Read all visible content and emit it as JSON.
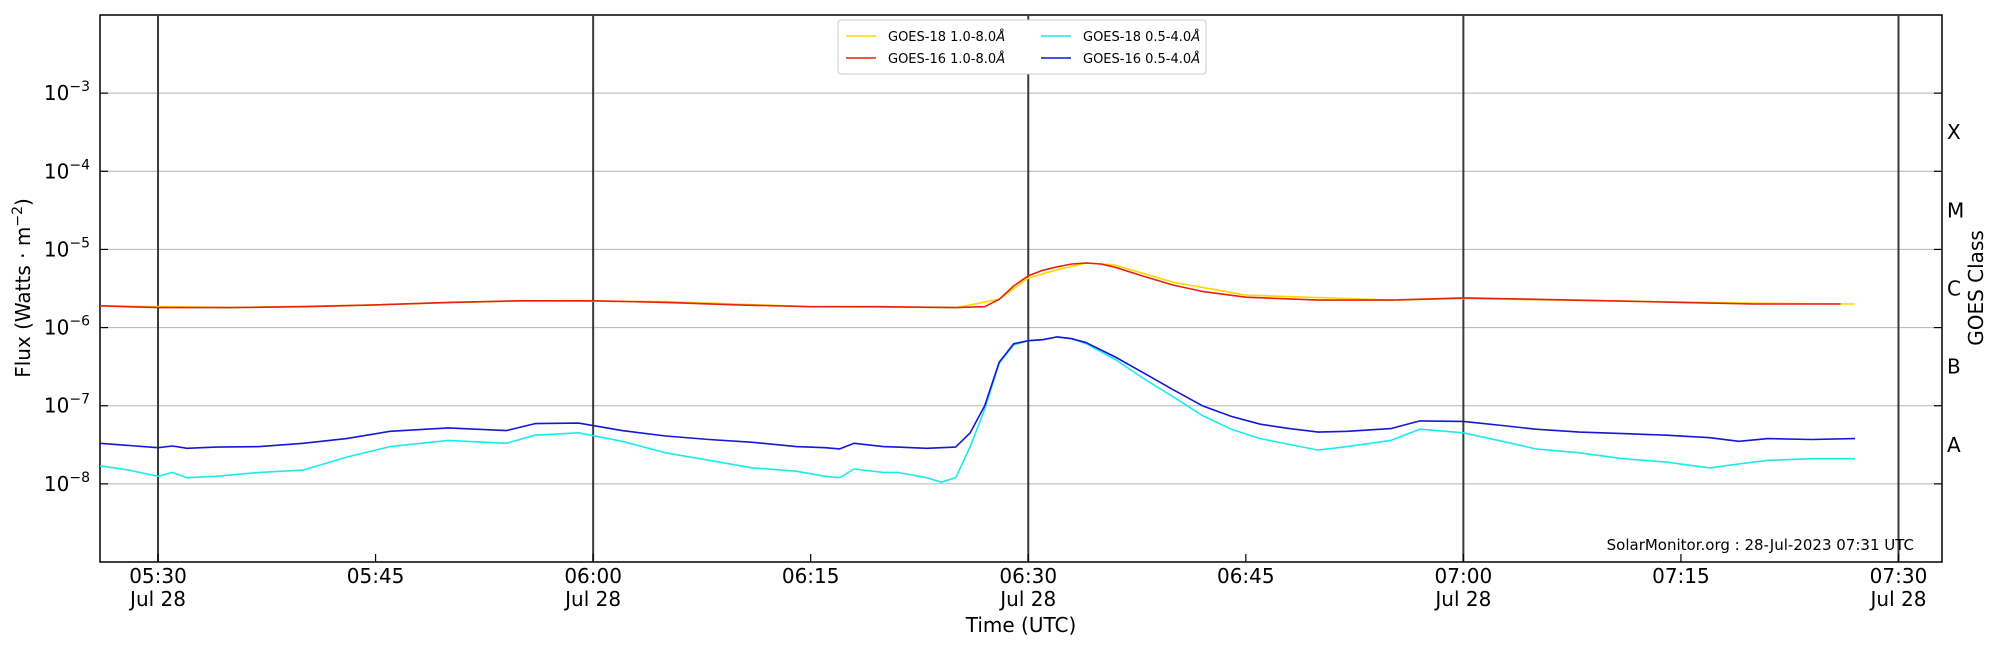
{
  "chart_data": {
    "type": "line",
    "xlabel": "Time (UTC)",
    "ylabel_main": "Flux (Watts · m",
    "ylabel_sup": "−2",
    "ylabel_close": ")",
    "ylabel_right": "GOES Class",
    "watermark": "SolarMonitor.org : 28-Jul-2023 07:31 UTC",
    "x_start": "05:26",
    "x_end": "07:33",
    "ylim": [
      "1e-9",
      "1e-2"
    ],
    "y_scale": "log",
    "x_ticks": [
      {
        "time": "05:30",
        "label": "05:30",
        "sublabel": "Jul 28",
        "major": true
      },
      {
        "time": "05:45",
        "label": "05:45",
        "sublabel": "",
        "major": false
      },
      {
        "time": "06:00",
        "label": "06:00",
        "sublabel": "Jul 28",
        "major": true
      },
      {
        "time": "06:15",
        "label": "06:15",
        "sublabel": "",
        "major": false
      },
      {
        "time": "06:30",
        "label": "06:30",
        "sublabel": "Jul 28",
        "major": true
      },
      {
        "time": "06:45",
        "label": "06:45",
        "sublabel": "",
        "major": false
      },
      {
        "time": "07:00",
        "label": "07:00",
        "sublabel": "Jul 28",
        "major": true
      },
      {
        "time": "07:15",
        "label": "07:15",
        "sublabel": "",
        "major": false
      },
      {
        "time": "07:30",
        "label": "07:30",
        "sublabel": "Jul 28",
        "major": true
      }
    ],
    "y_ticks": [
      {
        "value": 1e-08,
        "base": "10",
        "exp": "−8"
      },
      {
        "value": 1e-07,
        "base": "10",
        "exp": "−7"
      },
      {
        "value": 1e-06,
        "base": "10",
        "exp": "−6"
      },
      {
        "value": 1e-05,
        "base": "10",
        "exp": "−5"
      },
      {
        "value": 0.0001,
        "base": "10",
        "exp": "−4"
      },
      {
        "value": 0.001,
        "base": "10",
        "exp": "−3"
      }
    ],
    "goes_classes": [
      {
        "label": "A",
        "value": 3.16e-08
      },
      {
        "label": "B",
        "value": 3.16e-07
      },
      {
        "label": "C",
        "value": 3.16e-06
      },
      {
        "label": "M",
        "value": 3.16e-05
      },
      {
        "label": "X",
        "value": 0.000316
      }
    ],
    "grid": "horizontal",
    "legend_position": "top-center",
    "legend": [
      {
        "name": "GOES-18 1.0-8.0",
        "unit": "Å",
        "color": "#ffd700"
      },
      {
        "name": "GOES-16 1.0-8.0",
        "unit": "Å",
        "color": "#e8200c"
      },
      {
        "name": "GOES-18 0.5-4.0",
        "unit": "Å",
        "color": "#19ecec"
      },
      {
        "name": "GOES-16 0.5-4.0",
        "unit": "Å",
        "color": "#1616d6"
      }
    ],
    "series": [
      {
        "name": "GOES-18 1.0-8.0",
        "color": "#ffd700",
        "x": [
          "05:26",
          "05:35",
          "05:45",
          "05:55",
          "06:05",
          "06:15",
          "06:25",
          "06:28",
          "06:30",
          "06:32",
          "06:34",
          "06:36",
          "06:40",
          "06:45",
          "06:55",
          "07:00",
          "07:10",
          "07:20",
          "07:27"
        ],
        "y": [
          1.9e-06,
          1.8e-06,
          1.95e-06,
          2.2e-06,
          2.15e-06,
          1.85e-06,
          1.8e-06,
          2.3e-06,
          4.3e-06,
          5.5e-06,
          6.7e-06,
          6.3e-06,
          3.8e-06,
          2.6e-06,
          2.25e-06,
          2.35e-06,
          2.2e-06,
          2.05e-06,
          2e-06
        ]
      },
      {
        "name": "GOES-16 1.0-8.0",
        "color": "#e8200c",
        "x": [
          "05:26",
          "05:30",
          "05:35",
          "05:40",
          "05:45",
          "05:50",
          "05:55",
          "06:00",
          "06:05",
          "06:10",
          "06:15",
          "06:20",
          "06:25",
          "06:27",
          "06:28",
          "06:29",
          "06:30",
          "06:31",
          "06:32",
          "06:33",
          "06:34",
          "06:35",
          "06:36",
          "06:38",
          "06:40",
          "06:42",
          "06:45",
          "06:50",
          "06:55",
          "07:00",
          "07:05",
          "07:10",
          "07:15",
          "07:20",
          "07:26"
        ],
        "y": [
          1.9e-06,
          1.8e-06,
          1.8e-06,
          1.85e-06,
          1.95e-06,
          2.1e-06,
          2.2e-06,
          2.2e-06,
          2.1e-06,
          1.95e-06,
          1.85e-06,
          1.85e-06,
          1.8e-06,
          1.85e-06,
          2.3e-06,
          3.4e-06,
          4.6e-06,
          5.4e-06,
          6e-06,
          6.5e-06,
          6.7e-06,
          6.5e-06,
          5.9e-06,
          4.5e-06,
          3.5e-06,
          2.9e-06,
          2.45e-06,
          2.25e-06,
          2.25e-06,
          2.4e-06,
          2.3e-06,
          2.2e-06,
          2.1e-06,
          2e-06,
          2e-06
        ]
      },
      {
        "name": "GOES-18 0.5-4.0",
        "color": "#19ecec",
        "x": [
          "05:26",
          "05:28",
          "05:30",
          "05:31",
          "05:32",
          "05:34",
          "05:37",
          "05:40",
          "05:43",
          "05:46",
          "05:50",
          "05:54",
          "05:56",
          "05:59",
          "06:02",
          "06:05",
          "06:08",
          "06:11",
          "06:14",
          "06:16",
          "06:17",
          "06:18",
          "06:20",
          "06:21",
          "06:23",
          "06:24",
          "06:25",
          "06:26",
          "06:27",
          "06:28",
          "06:29",
          "06:30",
          "06:31",
          "06:32",
          "06:33",
          "06:34",
          "06:36",
          "06:38",
          "06:40",
          "06:42",
          "06:44",
          "06:46",
          "06:48",
          "06:50",
          "06:52",
          "06:55",
          "06:57",
          "07:00",
          "07:03",
          "07:05",
          "07:08",
          "07:11",
          "07:14",
          "07:17",
          "07:19",
          "07:21",
          "07:24",
          "07:27"
        ],
        "y": [
          1.7e-08,
          1.5e-08,
          1.25e-08,
          1.4e-08,
          1.2e-08,
          1.25e-08,
          1.4e-08,
          1.5e-08,
          2.2e-08,
          3e-08,
          3.6e-08,
          3.3e-08,
          4.2e-08,
          4.5e-08,
          3.5e-08,
          2.5e-08,
          2e-08,
          1.6e-08,
          1.45e-08,
          1.25e-08,
          1.2e-08,
          1.55e-08,
          1.4e-08,
          1.4e-08,
          1.2e-08,
          1.05e-08,
          1.2e-08,
          3e-08,
          9e-08,
          3.5e-07,
          6e-07,
          6.8e-07,
          7e-07,
          7.6e-07,
          7.2e-07,
          6.2e-07,
          3.9e-07,
          2.2e-07,
          1.3e-07,
          7.5e-08,
          5e-08,
          3.8e-08,
          3.2e-08,
          2.7e-08,
          3e-08,
          3.6e-08,
          5e-08,
          4.5e-08,
          3.4e-08,
          2.8e-08,
          2.5e-08,
          2.1e-08,
          1.9e-08,
          1.6e-08,
          1.8e-08,
          2e-08,
          2.1e-08,
          2.1e-08
        ]
      },
      {
        "name": "GOES-16 0.5-4.0",
        "color": "#1616d6",
        "x": [
          "05:26",
          "05:28",
          "05:30",
          "05:31",
          "05:32",
          "05:34",
          "05:37",
          "05:40",
          "05:43",
          "05:46",
          "05:50",
          "05:54",
          "05:56",
          "05:59",
          "06:02",
          "06:05",
          "06:08",
          "06:11",
          "06:14",
          "06:16",
          "06:17",
          "06:18",
          "06:20",
          "06:21",
          "06:23",
          "06:24",
          "06:25",
          "06:26",
          "06:27",
          "06:28",
          "06:29",
          "06:30",
          "06:31",
          "06:32",
          "06:33",
          "06:34",
          "06:36",
          "06:38",
          "06:40",
          "06:42",
          "06:44",
          "06:46",
          "06:48",
          "06:50",
          "06:52",
          "06:55",
          "06:57",
          "07:00",
          "07:03",
          "07:05",
          "07:08",
          "07:11",
          "07:14",
          "07:17",
          "07:19",
          "07:21",
          "07:24",
          "07:27"
        ],
        "y": [
          3.3e-08,
          3.1e-08,
          2.9e-08,
          3.05e-08,
          2.85e-08,
          2.95e-08,
          3e-08,
          3.3e-08,
          3.8e-08,
          4.7e-08,
          5.2e-08,
          4.8e-08,
          5.9e-08,
          6e-08,
          4.8e-08,
          4.1e-08,
          3.7e-08,
          3.4e-08,
          3e-08,
          2.9e-08,
          2.8e-08,
          3.3e-08,
          3e-08,
          2.95e-08,
          2.85e-08,
          2.9e-08,
          2.95e-08,
          4.5e-08,
          1e-07,
          3.6e-07,
          6.2e-07,
          6.8e-07,
          7e-07,
          7.6e-07,
          7.2e-07,
          6.4e-07,
          4.2e-07,
          2.6e-07,
          1.6e-07,
          1e-07,
          7.3e-08,
          5.8e-08,
          5.1e-08,
          4.6e-08,
          4.7e-08,
          5.1e-08,
          6.4e-08,
          6.3e-08,
          5.5e-08,
          5e-08,
          4.6e-08,
          4.4e-08,
          4.2e-08,
          3.9e-08,
          3.5e-08,
          3.8e-08,
          3.7e-08,
          3.8e-08
        ]
      }
    ]
  }
}
